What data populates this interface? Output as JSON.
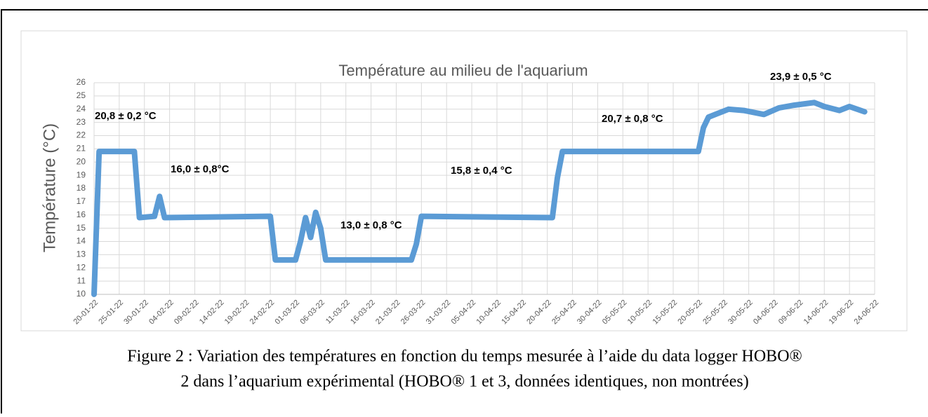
{
  "chart_data": {
    "type": "line",
    "title": "Température au milieu de l'aquarium",
    "y_label": "Température (°C)",
    "x": [
      "20-01-22",
      "21-01-22",
      "28-01-22",
      "29-01-22",
      "01-02-22",
      "02-02-22",
      "03-02-22",
      "24-02-22",
      "25-02-22",
      "01-03-22",
      "02-03-22",
      "03-03-22",
      "04-03-22",
      "05-03-22",
      "06-03-22",
      "07-03-22",
      "24-03-22",
      "25-03-22",
      "26-03-22",
      "21-04-22",
      "22-04-22",
      "23-04-22",
      "20-05-22",
      "21-05-22",
      "22-05-22",
      "26-05-22",
      "29-05-22",
      "02-06-22",
      "05-06-22",
      "08-06-22",
      "12-06-22",
      "14-06-22",
      "17-06-22",
      "19-06-22",
      "22-06-22"
    ],
    "series": [
      {
        "color": "#5b9bd5",
        "values": [
          10,
          20.8,
          20.8,
          15.8,
          15.9,
          17.4,
          15.8,
          15.9,
          12.6,
          12.6,
          14.0,
          15.8,
          14.3,
          16.2,
          15.0,
          12.6,
          12.6,
          13.8,
          15.9,
          15.8,
          18.8,
          20.8,
          20.8,
          22.6,
          23.4,
          24.0,
          23.9,
          23.6,
          24.1,
          24.3,
          24.5,
          24.2,
          23.9,
          24.2,
          23.8
        ]
      }
    ],
    "xlim": [
      "20-01-22",
      "24-06-22"
    ],
    "xticks": [
      "20-01-22",
      "25-01-22",
      "30-01-22",
      "04-02-22",
      "09-02-22",
      "14-02-22",
      "19-02-22",
      "24-02-22",
      "01-03-22",
      "06-03-22",
      "11-03-22",
      "16-03-22",
      "21-03-22",
      "26-03-22",
      "31-03-22",
      "05-04-22",
      "10-04-22",
      "15-04-22",
      "20-04-22",
      "25-04-22",
      "30-04-22",
      "05-05-22",
      "10-05-22",
      "15-05-22",
      "20-05-22",
      "25-05-22",
      "30-05-22",
      "04-06-22",
      "09-06-22",
      "14-06-22",
      "19-06-22",
      "24-06-22"
    ],
    "ylim": [
      10,
      26
    ],
    "yticks": [
      10,
      11,
      12,
      13,
      14,
      15,
      16,
      17,
      18,
      19,
      20,
      21,
      22,
      23,
      24,
      25,
      26
    ],
    "grid": true,
    "annotations": [
      "20,8 ± 0,2 °C",
      "16,0 ± 0,8°C",
      "13,0 ± 0,8 °C",
      "15,8 ± 0,4 °C",
      "20,7 ± 0,8 °C",
      "23,9 ± 0,5 °C"
    ]
  },
  "caption": [
    "Figure 2 : Variation des températures en fonction du temps mesurée à l’aide du data logger HOBO®",
    "2 dans l’aquarium expérimental (HOBO® 1 et 3, données identiques, non montrées)"
  ]
}
